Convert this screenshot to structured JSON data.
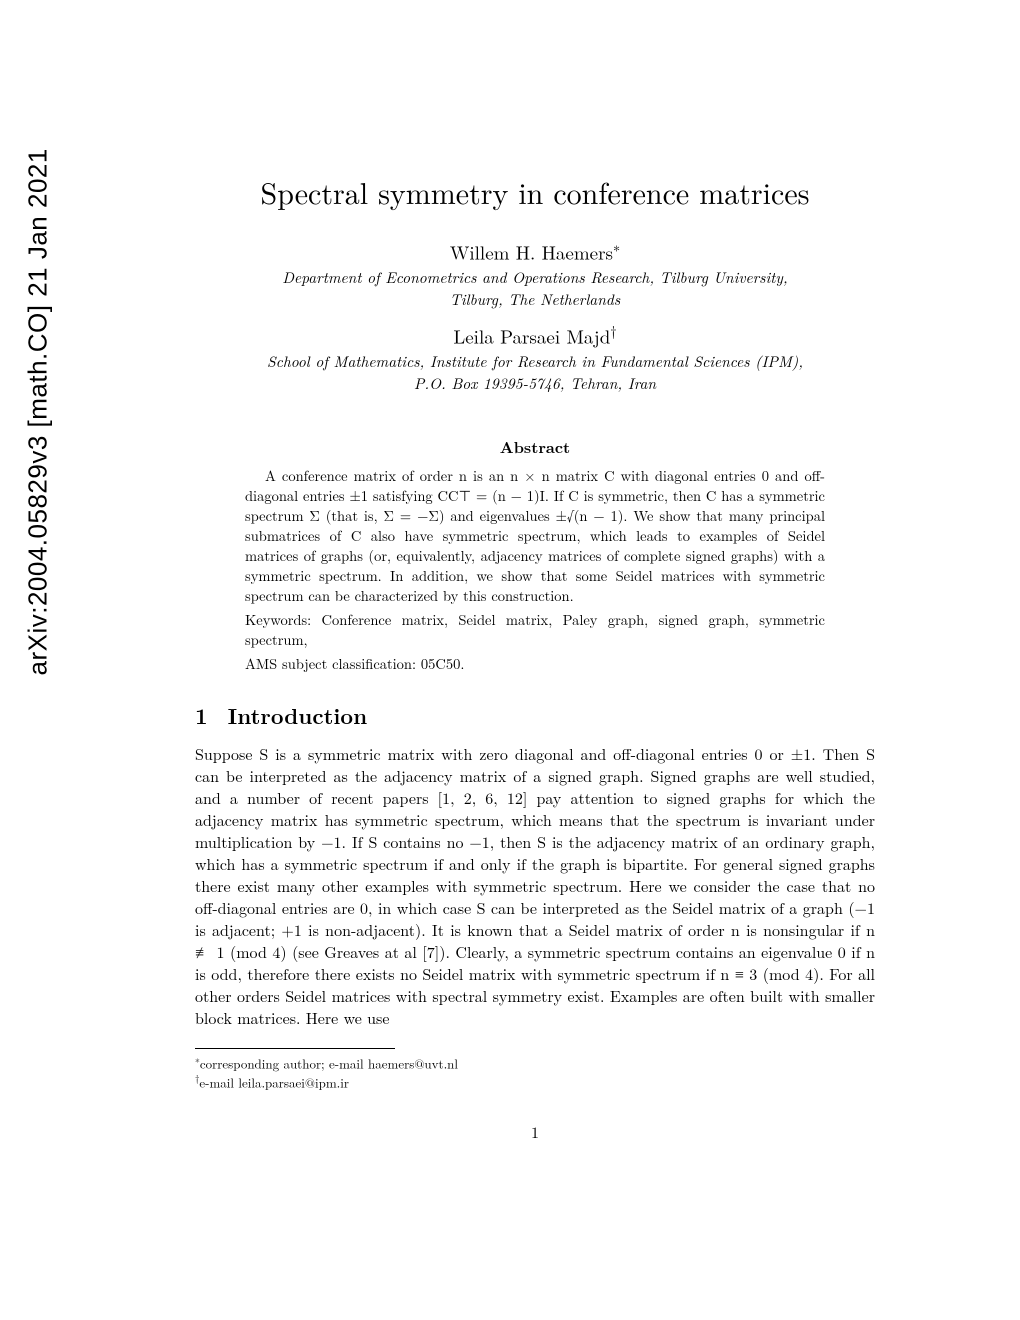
{
  "arxiv_stamp": "arXiv:2004.05829v3  [math.CO]  21 Jan 2021",
  "title": "Spectral symmetry in conference matrices",
  "authors": [
    {
      "name": "Willem H. Haemers",
      "marker": "∗",
      "affiliation_lines": [
        "Department of Econometrics and Operations Research, Tilburg University,",
        "Tilburg, The Netherlands"
      ]
    },
    {
      "name": "Leila Parsaei Majd",
      "marker": "†",
      "affiliation_lines": [
        "School of Mathematics, Institute for Research in Fundamental Sciences (IPM),",
        "P.O. Box 19395-5746, Tehran, Iran"
      ]
    }
  ],
  "abstract_heading": "Abstract",
  "abstract_p1": "A conference matrix of order n is an n × n matrix C with diagonal entries 0 and off-diagonal entries ±1 satisfying CC⊤ = (n − 1)I. If C is symmetric, then C has a symmetric spectrum Σ (that is, Σ = −Σ) and eigenvalues ±√(n − 1). We show that many principal submatrices of C also have symmetric spectrum, which leads to examples of Seidel matrices of graphs (or, equivalently, adjacency matrices of complete signed graphs) with a symmetric spectrum. In addition, we show that some Seidel matrices with symmetric spectrum can be characterized by this construction.",
  "abstract_keywords": "Keywords: Conference matrix, Seidel matrix, Paley graph, signed graph, symmetric spectrum,",
  "abstract_ams": "AMS subject classification: 05C50.",
  "section1_number": "1",
  "section1_title": "Introduction",
  "intro_body": "Suppose S is a symmetric matrix with zero diagonal and off-diagonal entries 0 or ±1. Then S can be interpreted as the adjacency matrix of a signed graph. Signed graphs are well studied, and a number of recent papers [1, 2, 6, 12] pay attention to signed graphs for which the adjacency matrix has symmetric spectrum, which means that the spectrum is invariant under multiplication by −1. If S contains no −1, then S is the adjacency matrix of an ordinary graph, which has a symmetric spectrum if and only if the graph is bipartite. For general signed graphs there exist many other examples with symmetric spectrum. Here we consider the case that no off-diagonal entries are 0, in which case S can be interpreted as the Seidel matrix of a graph (−1 is adjacent; +1 is non-adjacent). It is known that a Seidel matrix of order n is nonsingular if n ≢ 1 (mod 4) (see Greaves at al [7]). Clearly, a symmetric spectrum contains an eigenvalue 0 if n is odd, therefore there exists no Seidel matrix with symmetric spectrum if n ≡ 3 (mod 4). For all other orders Seidel matrices with spectral symmetry exist. Examples are often built with smaller block matrices. Here we use",
  "footnote1_marker": "∗",
  "footnote1_text": "corresponding author; e-mail haemers@uvt.nl",
  "footnote2_marker": "†",
  "footnote2_text": "e-mail leila.parsaei@ipm.ir",
  "page_number": "1"
}
